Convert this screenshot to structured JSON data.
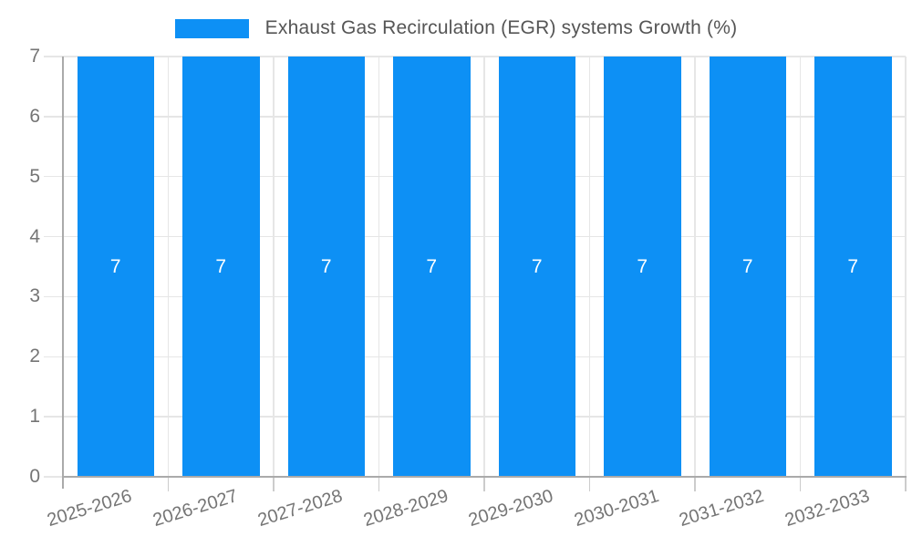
{
  "chart_data": {
    "type": "bar",
    "title": "Exhaust Gas Recirculation (EGR) systems Growth (%)",
    "categories": [
      "2025-2026",
      "2026-2027",
      "2027-2028",
      "2028-2029",
      "2029-2030",
      "2030-2031",
      "2031-2032",
      "2032-2033"
    ],
    "series": [
      {
        "name": "Exhaust Gas Recirculation (EGR) systems Growth (%)",
        "values": [
          7,
          7,
          7,
          7,
          7,
          7,
          7,
          7
        ]
      }
    ],
    "bar_value_labels": [
      "7",
      "7",
      "7",
      "7",
      "7",
      "7",
      "7",
      "7"
    ],
    "xlabel": "",
    "ylabel": "",
    "ylim": [
      0,
      7
    ],
    "yticks": [
      0,
      1,
      2,
      3,
      4,
      5,
      6,
      7
    ],
    "grid": true,
    "legend_position": "top-center",
    "x_tick_rotation_deg": -17
  },
  "colors": {
    "bar": "#0d90f5",
    "bar_label": "#ffffff",
    "grid_line": "#e6e6e6",
    "minor_tick": "#cccccc",
    "axis_line": "#aaaaaa",
    "tick_text": "#757575",
    "legend_text": "#555555",
    "background": "#ffffff"
  }
}
